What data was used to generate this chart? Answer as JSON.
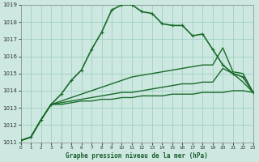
{
  "title": "Graphe pression niveau de la mer (hPa)",
  "bg_color": "#cce8e0",
  "grid_color": "#99ccbb",
  "line_color": "#1a6b2a",
  "x_min": 0,
  "x_max": 23,
  "y_min": 1011,
  "y_max": 1019,
  "x_ticks": [
    0,
    1,
    2,
    3,
    4,
    5,
    6,
    7,
    8,
    9,
    10,
    11,
    12,
    13,
    14,
    15,
    16,
    17,
    18,
    19,
    20,
    21,
    22,
    23
  ],
  "y_ticks": [
    1011,
    1012,
    1013,
    1014,
    1015,
    1016,
    1017,
    1018,
    1019
  ],
  "series": [
    {
      "x": [
        0,
        1,
        2,
        3,
        4,
        5,
        6,
        7,
        8,
        9,
        10,
        11,
        12,
        13,
        14,
        15,
        16,
        17,
        18,
        19,
        20,
        21,
        22,
        23
      ],
      "y": [
        1011.1,
        1011.3,
        1012.3,
        1013.2,
        1013.2,
        1013.3,
        1013.4,
        1013.4,
        1013.5,
        1013.5,
        1013.6,
        1013.6,
        1013.7,
        1013.7,
        1013.7,
        1013.8,
        1013.8,
        1013.8,
        1013.9,
        1013.9,
        1013.9,
        1014.0,
        1014.0,
        1013.9
      ],
      "marker": false,
      "lw": 1.0
    },
    {
      "x": [
        0,
        1,
        2,
        3,
        4,
        5,
        6,
        7,
        8,
        9,
        10,
        11,
        12,
        13,
        14,
        15,
        16,
        17,
        18,
        19,
        20,
        21,
        22,
        23
      ],
      "y": [
        1011.1,
        1011.3,
        1012.3,
        1013.2,
        1013.3,
        1013.4,
        1013.5,
        1013.6,
        1013.7,
        1013.8,
        1013.9,
        1013.9,
        1014.0,
        1014.1,
        1014.2,
        1014.3,
        1014.4,
        1014.4,
        1014.5,
        1014.5,
        1015.3,
        1015.0,
        1014.5,
        1013.9
      ],
      "marker": false,
      "lw": 1.0
    },
    {
      "x": [
        0,
        1,
        2,
        3,
        4,
        5,
        6,
        7,
        8,
        9,
        10,
        11,
        12,
        13,
        14,
        15,
        16,
        17,
        18,
        19,
        20,
        21,
        22,
        23
      ],
      "y": [
        1011.1,
        1011.3,
        1012.3,
        1013.2,
        1013.4,
        1013.6,
        1013.8,
        1014.0,
        1014.2,
        1014.4,
        1014.6,
        1014.8,
        1014.9,
        1015.0,
        1015.1,
        1015.2,
        1015.3,
        1015.4,
        1015.5,
        1015.5,
        1016.5,
        1015.1,
        1015.0,
        1013.9
      ],
      "marker": false,
      "lw": 1.0
    },
    {
      "x": [
        0,
        1,
        2,
        3,
        4,
        5,
        6,
        7,
        8,
        9,
        10,
        11,
        12,
        13,
        14,
        15,
        16,
        17,
        18,
        19,
        20,
        21,
        22,
        23
      ],
      "y": [
        1011.1,
        1011.3,
        1012.3,
        1013.2,
        1013.8,
        1014.6,
        1015.2,
        1016.4,
        1017.4,
        1018.7,
        1019.0,
        1019.0,
        1018.6,
        1018.5,
        1017.9,
        1017.8,
        1017.8,
        1017.2,
        1017.3,
        1016.4,
        1015.5,
        1015.0,
        1014.8,
        1013.9
      ],
      "marker": true,
      "lw": 1.2
    }
  ]
}
